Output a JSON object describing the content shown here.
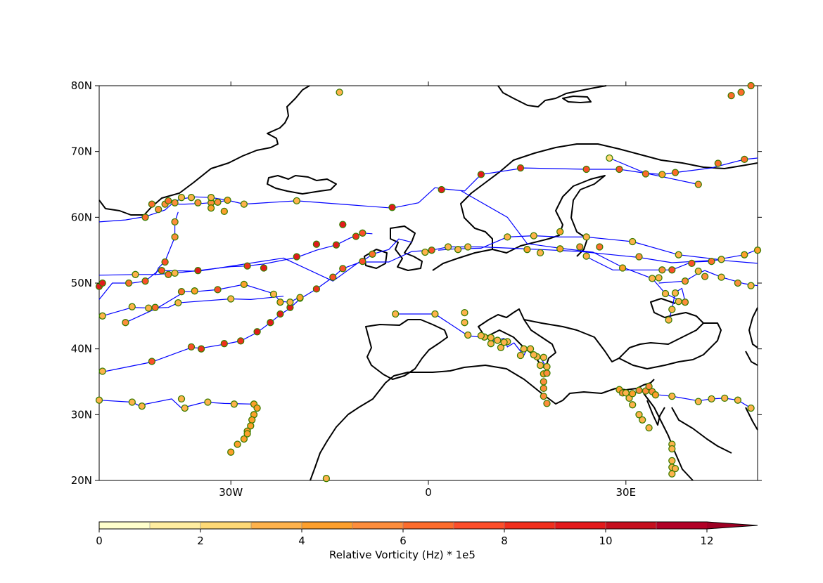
{
  "map": {
    "projection": "PlateCarree",
    "extent": {
      "lon": [
        -50,
        50
      ],
      "lat": [
        20,
        80
      ]
    },
    "lat_ticks": [
      {
        "value": 20,
        "label": "20N"
      },
      {
        "value": 30,
        "label": "30N"
      },
      {
        "value": 40,
        "label": "40N"
      },
      {
        "value": 50,
        "label": "50N"
      },
      {
        "value": 60,
        "label": "60N"
      },
      {
        "value": 70,
        "label": "70N"
      },
      {
        "value": 80,
        "label": "80N"
      }
    ],
    "lon_ticks": [
      {
        "value": -30,
        "label": "30W"
      },
      {
        "value": 0,
        "label": "0"
      },
      {
        "value": 30,
        "label": "30E"
      }
    ],
    "track_color": "#0000ff",
    "marker_edge": "#3a7d00",
    "coast_color": "#000000"
  },
  "colorbar": {
    "title": "Relative Vorticity (Hz) * 1e5",
    "ticks": [
      0,
      2,
      4,
      6,
      8,
      10,
      12
    ],
    "bounds": [
      0,
      13
    ],
    "colors": [
      "#ffffcc",
      "#ffeda0",
      "#fed976",
      "#feb24c",
      "#fd9f2c",
      "#fd8d3c",
      "#fc6c2c",
      "#fc4e2a",
      "#f02f1d",
      "#e31a1c",
      "#c50f1e",
      "#b10026",
      "#9e0024"
    ],
    "extend": "max"
  },
  "tracks": [
    {
      "points": [
        [
          -50,
          59.3
        ],
        [
          -46,
          59.6
        ],
        [
          -43,
          60.1
        ],
        [
          -40,
          61.1
        ],
        [
          -39,
          62
        ],
        [
          -37,
          62
        ],
        [
          -34.5,
          62.1
        ],
        [
          -32,
          62.3
        ],
        [
          -30.5,
          62.6
        ]
      ]
    },
    {
      "points": [
        [
          -39.5,
          62.2
        ],
        [
          -38.5,
          62.4
        ],
        [
          -37.5,
          62.8
        ],
        [
          -35.5,
          63.1
        ],
        [
          -33,
          63.0
        ],
        [
          -30.5,
          62.6
        ],
        [
          -28,
          62
        ],
        [
          -20,
          62.5
        ]
      ]
    },
    {
      "points": [
        [
          -38,
          60.8
        ],
        [
          -38.5,
          59.3
        ],
        [
          -38.5,
          57
        ],
        [
          -40,
          53.3
        ],
        [
          -41,
          52.3
        ],
        [
          -41.5,
          51.2
        ]
      ]
    },
    {
      "points": [
        [
          -50,
          51.2
        ],
        [
          -44.5,
          51.3
        ],
        [
          -41.5,
          51.3
        ],
        [
          -38.5,
          51.5
        ],
        [
          -35,
          51.9
        ],
        [
          -30,
          52.5
        ],
        [
          -27.5,
          52.6
        ],
        [
          -25,
          52.9
        ],
        [
          -20,
          53.9
        ],
        [
          -17,
          55
        ],
        [
          -14,
          55.8
        ],
        [
          -12,
          56.8
        ],
        [
          -10,
          57.6
        ],
        [
          -8.5,
          57.5
        ]
      ]
    },
    {
      "points": [
        [
          -50,
          47.5
        ],
        [
          -48,
          50
        ],
        [
          -45,
          50
        ],
        [
          -43,
          50.3
        ],
        [
          -41,
          51.9
        ],
        [
          -35,
          51.8
        ]
      ]
    },
    {
      "points": [
        [
          -49.5,
          45
        ],
        [
          -45,
          46.3
        ],
        [
          -42,
          46.2
        ],
        [
          -39.5,
          46.3
        ],
        [
          -38,
          47
        ],
        [
          -30,
          47.6
        ],
        [
          -27,
          47.5
        ],
        [
          -22,
          48
        ]
      ]
    },
    {
      "points": [
        [
          -46,
          44
        ],
        [
          -41,
          46.3
        ],
        [
          -37,
          48.7
        ],
        [
          -35.5,
          48.7
        ],
        [
          -32,
          49
        ],
        [
          -28,
          49.8
        ],
        [
          -23.5,
          48.4
        ],
        [
          -22.5,
          47.2
        ],
        [
          -21,
          47.1
        ],
        [
          -19.5,
          47.9
        ]
      ]
    },
    {
      "points": [
        [
          -49.5,
          36.5
        ],
        [
          -42,
          38
        ],
        [
          -36,
          40.2
        ],
        [
          -34.5,
          40.1
        ],
        [
          -31,
          40.7
        ],
        [
          -28.5,
          41.2
        ],
        [
          -26,
          42.5
        ],
        [
          -24,
          44
        ],
        [
          -22.5,
          45.2
        ],
        [
          -21,
          46.2
        ],
        [
          -19.5,
          47.6
        ],
        [
          -17,
          49.1
        ],
        [
          -14.5,
          50.9
        ],
        [
          -13,
          52.2
        ],
        [
          -10,
          53.3
        ],
        [
          -8.5,
          54.4
        ],
        [
          -6,
          55.1
        ],
        [
          -4.5,
          56.7
        ],
        [
          -2.5,
          56.2
        ]
      ]
    },
    {
      "points": [
        [
          -35,
          51.8
        ],
        [
          -22,
          53.8
        ],
        [
          -14.5,
          50.3
        ],
        [
          -10.5,
          53.2
        ],
        [
          -6,
          53.2
        ],
        [
          -2.5,
          54.8
        ],
        [
          0.5,
          55
        ],
        [
          3,
          55.5
        ],
        [
          8,
          55.5
        ],
        [
          17,
          55.1
        ],
        [
          23,
          54.8
        ],
        [
          29,
          54.2
        ],
        [
          32,
          53.9
        ],
        [
          37,
          53.1
        ],
        [
          44,
          53.5
        ],
        [
          50,
          53
        ]
      ]
    },
    {
      "points": [
        [
          -20,
          62.5
        ],
        [
          -5.5,
          61.4
        ],
        [
          -1.5,
          62.2
        ],
        [
          1,
          64.5
        ],
        [
          2.5,
          64.3
        ],
        [
          5.5,
          64
        ],
        [
          8,
          66.5
        ],
        [
          14.5,
          67.5
        ],
        [
          24,
          67.3
        ],
        [
          29,
          67.3
        ],
        [
          33,
          66.7
        ],
        [
          35.5,
          66.5
        ],
        [
          37.5,
          66.8
        ],
        [
          43,
          67.5
        ],
        [
          48,
          68.8
        ],
        [
          50,
          69
        ]
      ]
    },
    {
      "points": [
        [
          5,
          64
        ],
        [
          12,
          60
        ],
        [
          15,
          56
        ],
        [
          20,
          55.3
        ],
        [
          25,
          54.7
        ],
        [
          29.5,
          52.4
        ],
        [
          34,
          50.7
        ],
        [
          36,
          48.4
        ],
        [
          39,
          47
        ]
      ]
    },
    {
      "points": [
        [
          27.5,
          69
        ],
        [
          33,
          66.7
        ],
        [
          41,
          65
        ]
      ]
    },
    {
      "points": [
        [
          1.5,
          55
        ],
        [
          4,
          55.2
        ],
        [
          8,
          55.3
        ],
        [
          12,
          57
        ],
        [
          16,
          57.2
        ],
        [
          20,
          57
        ],
        [
          24,
          57
        ],
        [
          31,
          56.3
        ],
        [
          38,
          54.3
        ],
        [
          44,
          53.6
        ],
        [
          48,
          54.3
        ],
        [
          50,
          55.1
        ]
      ]
    },
    {
      "points": [
        [
          35,
          50
        ],
        [
          39,
          50.3
        ],
        [
          41,
          51.5
        ],
        [
          42,
          51.9
        ],
        [
          44.5,
          50.9
        ],
        [
          48,
          49.9
        ],
        [
          50,
          49.6
        ]
      ]
    },
    {
      "points": [
        [
          24,
          54
        ],
        [
          28,
          52
        ],
        [
          37,
          52
        ],
        [
          40,
          53.2
        ],
        [
          42.5,
          53.3
        ]
      ]
    },
    {
      "points": [
        [
          36.5,
          44.3
        ],
        [
          37,
          46
        ],
        [
          37.5,
          48.6
        ],
        [
          38.5,
          49.2
        ],
        [
          39,
          47.2
        ]
      ]
    },
    {
      "points": [
        [
          -5,
          45.3
        ],
        [
          1,
          45.3
        ],
        [
          6,
          42
        ],
        [
          8.5,
          41.7
        ],
        [
          10,
          41.2
        ],
        [
          11.5,
          41.6
        ],
        [
          12,
          40.3
        ],
        [
          13,
          40.9
        ],
        [
          14.5,
          39
        ],
        [
          15,
          40
        ],
        [
          17,
          38.8
        ],
        [
          18,
          37
        ]
      ]
    },
    {
      "points": [
        [
          -50,
          32.2
        ],
        [
          -45,
          31.9
        ],
        [
          -44,
          31.4
        ],
        [
          -39,
          32.4
        ],
        [
          -37.5,
          31
        ],
        [
          -34,
          31.9
        ],
        [
          -31,
          31.7
        ],
        [
          -26.5,
          31.6
        ],
        [
          -26.5,
          31
        ]
      ]
    },
    {
      "points": [
        [
          29,
          33
        ],
        [
          31,
          33.3
        ],
        [
          33,
          33.5
        ],
        [
          35,
          33
        ],
        [
          37,
          32.8
        ],
        [
          41,
          32.1
        ],
        [
          43,
          32.4
        ],
        [
          45,
          32.5
        ],
        [
          47,
          32.2
        ],
        [
          49,
          31
        ]
      ]
    }
  ],
  "points": [
    [
      -50,
      49.5,
      9
    ],
    [
      -49.5,
      50,
      9
    ],
    [
      -45.5,
      50,
      6
    ],
    [
      -43,
      50.3,
      7
    ],
    [
      -40.5,
      51.9,
      7
    ],
    [
      -39.5,
      51.3,
      6
    ],
    [
      -35,
      51.9,
      9
    ],
    [
      -27.5,
      52.6,
      8
    ],
    [
      -25,
      52.3,
      9
    ],
    [
      -20,
      54,
      9
    ],
    [
      -17,
      55.9,
      9
    ],
    [
      -14,
      55.8,
      9
    ],
    [
      -13,
      58.9,
      9
    ],
    [
      -11,
      57.1,
      8
    ],
    [
      -10,
      57.6,
      7
    ],
    [
      -8.5,
      54.4,
      6
    ],
    [
      -10,
      53.3,
      7
    ],
    [
      -13,
      52.2,
      7
    ],
    [
      -14.5,
      50.9,
      7
    ],
    [
      -17,
      49.1,
      8
    ],
    [
      -19.5,
      47.7,
      8
    ],
    [
      -21,
      46.3,
      9
    ],
    [
      -22.5,
      45.3,
      9
    ],
    [
      -24,
      44,
      9
    ],
    [
      -26,
      42.6,
      9
    ],
    [
      -28.5,
      41.2,
      8
    ],
    [
      -31,
      40.8,
      8
    ],
    [
      -34.5,
      40,
      8
    ],
    [
      -36,
      40.3,
      7
    ],
    [
      -42,
      38.1,
      7
    ],
    [
      -49.5,
      36.6,
      3
    ],
    [
      -5.5,
      61.5,
      9
    ],
    [
      2,
      64.2,
      9
    ],
    [
      8,
      66.5,
      9
    ],
    [
      14,
      67.5,
      8
    ],
    [
      24,
      67.3,
      7
    ],
    [
      29,
      67.3,
      7
    ],
    [
      33,
      66.6,
      6
    ],
    [
      37.5,
      66.8,
      6
    ],
    [
      44,
      68.2,
      6
    ],
    [
      48,
      68.8,
      6
    ],
    [
      46,
      78.5,
      6
    ],
    [
      47.5,
      79,
      6
    ],
    [
      49,
      80,
      6
    ],
    [
      41,
      65,
      5
    ],
    [
      35.5,
      66.5,
      4
    ],
    [
      27.5,
      69,
      2
    ],
    [
      -43,
      60,
      6
    ],
    [
      -38.5,
      59.3,
      5
    ],
    [
      -38.5,
      57,
      5
    ],
    [
      -40,
      53.2,
      7
    ],
    [
      -42,
      62,
      6
    ],
    [
      -41,
      61.2,
      5
    ],
    [
      -40,
      62,
      5
    ],
    [
      -39.5,
      62.5,
      6
    ],
    [
      -38.5,
      62.2,
      5
    ],
    [
      -37.5,
      63,
      3
    ],
    [
      -35,
      62.2,
      5
    ],
    [
      -33,
      62.2,
      5
    ],
    [
      -32,
      62.3,
      5
    ],
    [
      -30.5,
      62.6,
      4
    ],
    [
      -36,
      63,
      3
    ],
    [
      -33,
      63,
      3
    ],
    [
      -31,
      60.9,
      4
    ],
    [
      -33,
      61.4,
      4
    ],
    [
      -20,
      62.5,
      3
    ],
    [
      -28,
      62,
      3
    ],
    [
      -46,
      44,
      5
    ],
    [
      -41.5,
      46.3,
      6
    ],
    [
      -37.5,
      48.7,
      6
    ],
    [
      -35.5,
      48.8,
      4
    ],
    [
      -32,
      49,
      7
    ],
    [
      -28,
      49.8,
      4
    ],
    [
      -23.5,
      48.3,
      3
    ],
    [
      -22.5,
      47.1,
      4
    ],
    [
      -21,
      47.1,
      3
    ],
    [
      -19.5,
      47.8,
      4
    ],
    [
      -30,
      47.6,
      3
    ],
    [
      -38,
      47,
      3
    ],
    [
      -42.5,
      46.2,
      3
    ],
    [
      -45,
      46.4,
      3
    ],
    [
      -49.5,
      45,
      3
    ],
    [
      -44.5,
      51.3,
      3
    ],
    [
      -38.5,
      51.5,
      3
    ],
    [
      -0.5,
      54.7,
      3
    ],
    [
      0.5,
      55,
      7
    ],
    [
      3,
      55.5,
      3
    ],
    [
      4.5,
      55.1,
      3
    ],
    [
      6,
      55.5,
      3
    ],
    [
      12,
      57,
      3
    ],
    [
      16,
      57.2,
      3
    ],
    [
      20,
      57.8,
      4
    ],
    [
      24,
      57,
      3
    ],
    [
      31,
      56.3,
      3
    ],
    [
      38,
      54.3,
      3
    ],
    [
      44.5,
      53.6,
      3
    ],
    [
      48,
      54.3,
      4
    ],
    [
      50,
      55,
      4
    ],
    [
      15,
      55.1,
      4
    ],
    [
      17,
      54.6,
      3
    ],
    [
      20,
      55.2,
      4
    ],
    [
      23,
      55.5,
      5
    ],
    [
      24,
      54.1,
      3
    ],
    [
      26,
      55.5,
      6
    ],
    [
      29.5,
      52.3,
      4
    ],
    [
      32,
      54,
      5
    ],
    [
      34,
      50.7,
      3
    ],
    [
      35.5,
      52,
      5
    ],
    [
      36,
      48.4,
      3
    ],
    [
      36.5,
      44.4,
      3
    ],
    [
      37,
      46,
      3
    ],
    [
      37.5,
      48.5,
      3
    ],
    [
      38,
      47.2,
      3
    ],
    [
      39,
      47.1,
      5
    ],
    [
      37,
      52,
      7
    ],
    [
      39,
      50.3,
      5
    ],
    [
      40,
      53,
      7
    ],
    [
      41,
      51.8,
      3
    ],
    [
      42,
      51,
      5
    ],
    [
      44.5,
      50.9,
      3
    ],
    [
      43,
      53.3,
      6
    ],
    [
      47,
      50,
      5
    ],
    [
      49,
      49.6,
      3
    ],
    [
      35,
      50.8,
      3
    ],
    [
      -5,
      45.3,
      3
    ],
    [
      1,
      45.3,
      3
    ],
    [
      6,
      42.1,
      3
    ],
    [
      8.5,
      41.8,
      3
    ],
    [
      9.5,
      40.8,
      3
    ],
    [
      10.5,
      41.3,
      3
    ],
    [
      11,
      40.2,
      3
    ],
    [
      12,
      41.1,
      3
    ],
    [
      14,
      39,
      3
    ],
    [
      14.5,
      40,
      3
    ],
    [
      16.5,
      38.8,
      3
    ],
    [
      17,
      37.5,
      3
    ],
    [
      18,
      37.3,
      3
    ],
    [
      17.5,
      36.2,
      4
    ],
    [
      18,
      36.3,
      5
    ],
    [
      17.5,
      35,
      5
    ],
    [
      17.5,
      34,
      5
    ],
    [
      17.5,
      32.8,
      5
    ],
    [
      18,
      31.7,
      5
    ],
    [
      5.5,
      45.5,
      3
    ],
    [
      5.5,
      44,
      3
    ],
    [
      8,
      42,
      3
    ],
    [
      9.5,
      41.7,
      3
    ],
    [
      11.5,
      41,
      3
    ],
    [
      15.5,
      40,
      3
    ],
    [
      16,
      39.1,
      3
    ],
    [
      17.5,
      38.7,
      3
    ],
    [
      29,
      33.8,
      4
    ],
    [
      29.5,
      33.3,
      5
    ],
    [
      30,
      33.3,
      3
    ],
    [
      30.5,
      32.5,
      3
    ],
    [
      31,
      33.2,
      4
    ],
    [
      32,
      33.7,
      5
    ],
    [
      33,
      33.6,
      5
    ],
    [
      33.5,
      34.3,
      5
    ],
    [
      34,
      33.5,
      5
    ],
    [
      34.5,
      33,
      4
    ],
    [
      37,
      32.8,
      3
    ],
    [
      41,
      32,
      3
    ],
    [
      43,
      32.4,
      3
    ],
    [
      45,
      32.5,
      3
    ],
    [
      47,
      32.2,
      3
    ],
    [
      49,
      31,
      3
    ],
    [
      31,
      31.5,
      3
    ],
    [
      32,
      30,
      3
    ],
    [
      32.5,
      29.2,
      3
    ],
    [
      33.5,
      28,
      3
    ],
    [
      37,
      25.5,
      3
    ],
    [
      37,
      24.8,
      3
    ],
    [
      37,
      23,
      3
    ],
    [
      37,
      22,
      3
    ],
    [
      37.5,
      21.8,
      3
    ],
    [
      37,
      21,
      3
    ],
    [
      -15.5,
      20.3,
      3
    ],
    [
      -13.5,
      79,
      3
    ],
    [
      -50,
      32.2,
      3
    ],
    [
      -45,
      31.9,
      3
    ],
    [
      -43.5,
      31.3,
      3
    ],
    [
      -37.5,
      32.4,
      3
    ],
    [
      -37,
      31,
      3
    ],
    [
      -33.5,
      31.9,
      3
    ],
    [
      -29.5,
      31.6,
      3
    ],
    [
      -26.5,
      31.6,
      4
    ],
    [
      -26,
      31,
      4
    ],
    [
      -26.5,
      30,
      4
    ],
    [
      -26.8,
      29.2,
      4
    ],
    [
      -27,
      28.3,
      4
    ],
    [
      -27.5,
      27.5,
      4
    ],
    [
      -27.5,
      27.1,
      4
    ],
    [
      -28,
      26.3,
      4
    ],
    [
      -29,
      25.5,
      4
    ],
    [
      -30,
      24.3,
      4
    ]
  ]
}
